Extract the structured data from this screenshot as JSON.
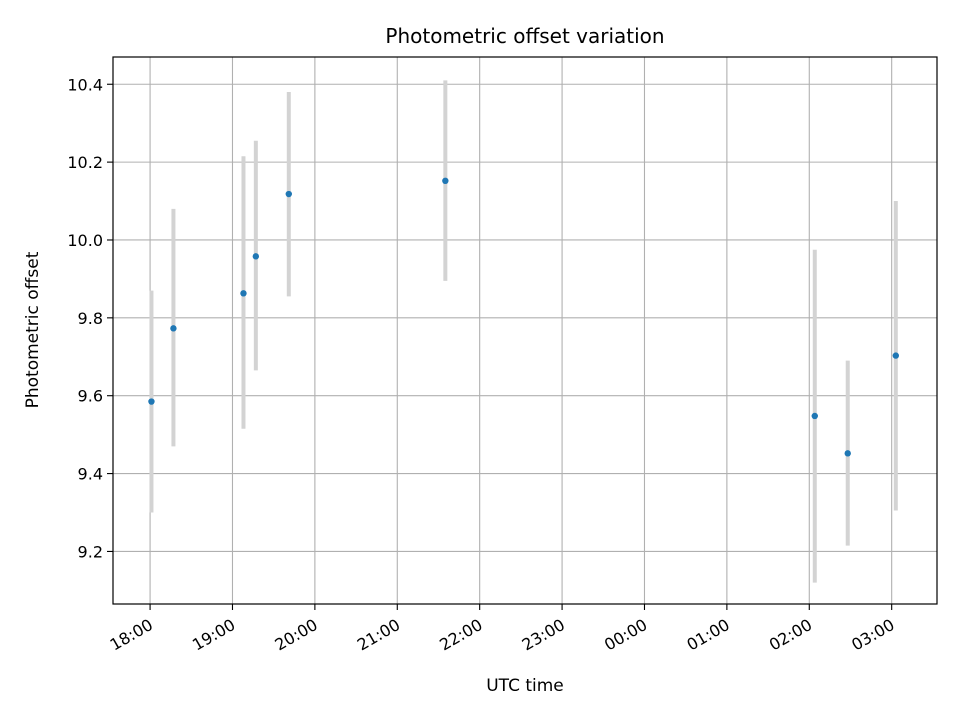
{
  "chart_data": {
    "type": "scatter",
    "title": "Photometric offset variation",
    "xlabel": "UTC time",
    "ylabel": "Photometric offset",
    "x_ticks": [
      "18:00",
      "19:00",
      "20:00",
      "21:00",
      "22:00",
      "23:00",
      "00:00",
      "01:00",
      "02:00",
      "03:00"
    ],
    "y_ticks": [
      "9.2",
      "9.4",
      "9.6",
      "9.8",
      "10.0",
      "10.2",
      "10.4"
    ],
    "xlim": [
      "17:33",
      "03:33"
    ],
    "ylim": [
      9.065,
      10.47
    ],
    "grid": true,
    "colors": {
      "point": "#1f77b4",
      "errorbar": "#d3d3d3",
      "grid": "#b0b0b0"
    },
    "series": [
      {
        "points": [
          {
            "x": "18:01",
            "y": 9.585,
            "yerr_low": 9.3,
            "yerr_high": 9.87
          },
          {
            "x": "18:17",
            "y": 9.773,
            "yerr_low": 9.47,
            "yerr_high": 10.08
          },
          {
            "x": "19:08",
            "y": 9.863,
            "yerr_low": 9.515,
            "yerr_high": 10.215
          },
          {
            "x": "19:17",
            "y": 9.958,
            "yerr_low": 9.665,
            "yerr_high": 10.255
          },
          {
            "x": "19:41",
            "y": 10.118,
            "yerr_low": 9.855,
            "yerr_high": 10.38
          },
          {
            "x": "21:35",
            "y": 10.152,
            "yerr_low": 9.895,
            "yerr_high": 10.41
          },
          {
            "x": "02:04",
            "y": 9.548,
            "yerr_low": 9.12,
            "yerr_high": 9.975
          },
          {
            "x": "02:28",
            "y": 9.452,
            "yerr_low": 9.215,
            "yerr_high": 9.69
          },
          {
            "x": "03:03",
            "y": 9.703,
            "yerr_low": 9.305,
            "yerr_high": 10.1
          }
        ]
      }
    ]
  }
}
